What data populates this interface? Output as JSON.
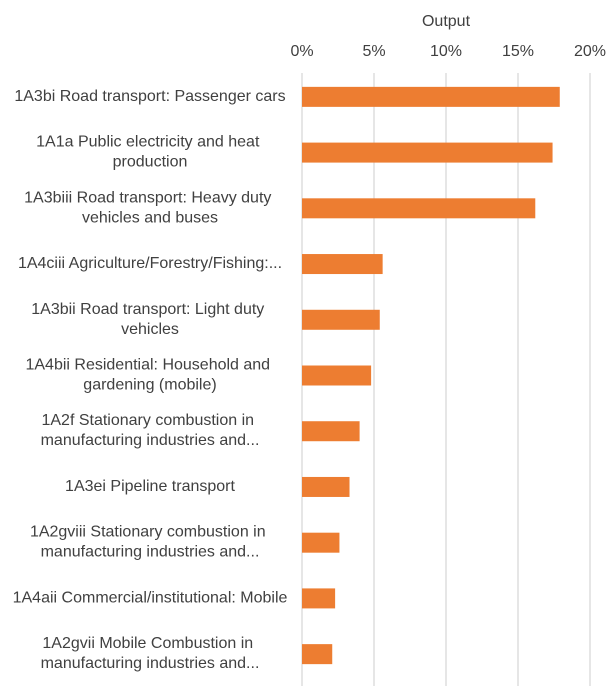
{
  "chart_data": {
    "type": "barh",
    "x_label": "Output",
    "categories": [
      "1A3bi Road transport: Passenger cars",
      "1A1a Public electricity and heat production",
      "1A3biii Road transport: Heavy duty vehicles and buses",
      "1A4ciii Agriculture/Forestry/Fishing:...",
      "1A3bii Road transport: Light duty vehicles",
      "1A4bii Residential: Household and gardening (mobile)",
      "1A2f Stationary combustion in manufacturing industries and...",
      "1A3ei Pipeline transport",
      "1A2gviii Stationary combustion in manufacturing industries and...",
      "1A4aii Commercial/institutional: Mobile",
      "1A2gvii Mobile Combustion in manufacturing industries and..."
    ],
    "values": [
      17.9,
      17.4,
      16.2,
      5.6,
      5.4,
      4.8,
      4.0,
      3.3,
      2.6,
      2.3,
      2.1
    ],
    "color": "#ed7d31",
    "xlim": [
      0,
      20
    ],
    "xticks": [
      {
        "value": 0,
        "label": "0%"
      },
      {
        "value": 5,
        "label": "5%"
      },
      {
        "value": 10,
        "label": "10%"
      },
      {
        "value": 15,
        "label": "15%"
      },
      {
        "value": 20,
        "label": "20%"
      }
    ],
    "grid": true
  }
}
